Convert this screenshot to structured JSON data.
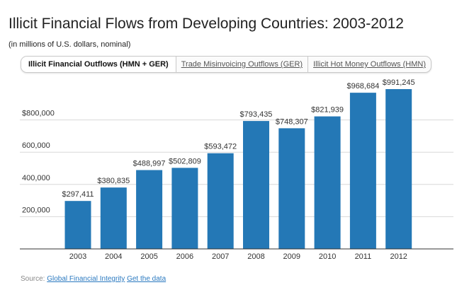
{
  "header": {
    "title": "Illicit Financial Flows from Developing Countries: 2003-2012",
    "subtitle": "(in millions of U.S. dollars, nominal)"
  },
  "tabs": [
    {
      "label": "Illicit Financial Outflows (HMN + GER)",
      "active": true
    },
    {
      "label": "Trade Misinvoicing Outflows (GER)",
      "active": false
    },
    {
      "label": "Illicit Hot Money Outflows (HMN)",
      "active": false
    }
  ],
  "footer": {
    "source_prefix": "Source:",
    "source_link": "Global Financial Integrity",
    "data_link": "Get the data"
  },
  "colors": {
    "bar": "#2478b6",
    "grid": "#d8d8d8",
    "axis": "#333333"
  },
  "chart_data": {
    "type": "bar",
    "categories": [
      "2003",
      "2004",
      "2005",
      "2006",
      "2007",
      "2008",
      "2009",
      "2010",
      "2011",
      "2012"
    ],
    "values": [
      297411,
      380835,
      488997,
      502809,
      593472,
      793435,
      748307,
      821939,
      968684,
      991245
    ],
    "value_labels": [
      "$297,411",
      "$380,835",
      "$488,997",
      "$502,809",
      "$593,472",
      "$793,435",
      "$748,307",
      "$821,939",
      "$968,684",
      "$991,245"
    ],
    "y_ticks": [
      200000,
      400000,
      600000,
      800000
    ],
    "y_tick_labels": [
      "200,000",
      "400,000",
      "600,000",
      "$800,000"
    ],
    "ylim": [
      0,
      1000000
    ],
    "grid": true,
    "legend": "none"
  }
}
